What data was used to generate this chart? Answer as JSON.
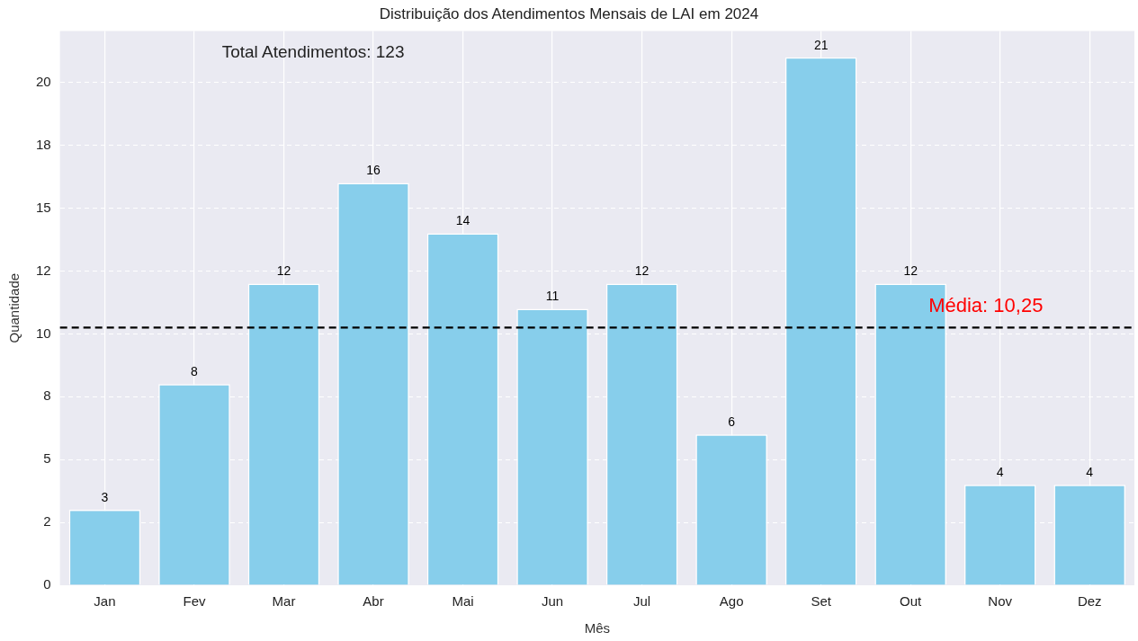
{
  "chart_data": {
    "type": "bar",
    "title": "Distribuição dos Atendimentos Mensais de LAI em 2024",
    "xlabel": "Mês",
    "ylabel": "Quantidade",
    "categories": [
      "Jan",
      "Fev",
      "Mar",
      "Abr",
      "Mai",
      "Jun",
      "Jul",
      "Ago",
      "Set",
      "Out",
      "Nov",
      "Dez"
    ],
    "values": [
      3,
      8,
      12,
      16,
      14,
      11,
      12,
      6,
      21,
      12,
      4,
      4
    ],
    "color": "#87ceeb",
    "ylim": [
      0,
      22.05
    ],
    "yticks": [
      0,
      {
        "value": 2.5,
        "label": "2"
      },
      5,
      {
        "value": 7.5,
        "label": "8"
      },
      10,
      {
        "value": 12.5,
        "label": "12"
      },
      15,
      {
        "value": 17.5,
        "label": "18"
      },
      20
    ],
    "grid": true,
    "data_labels": true,
    "ref_lines": [
      {
        "axis": "y",
        "value": 10.25,
        "label": "Média: 10,25",
        "color": "#000000",
        "line_style": "dashed"
      }
    ],
    "annotations": [
      "Total Atendimentos: 123"
    ]
  }
}
